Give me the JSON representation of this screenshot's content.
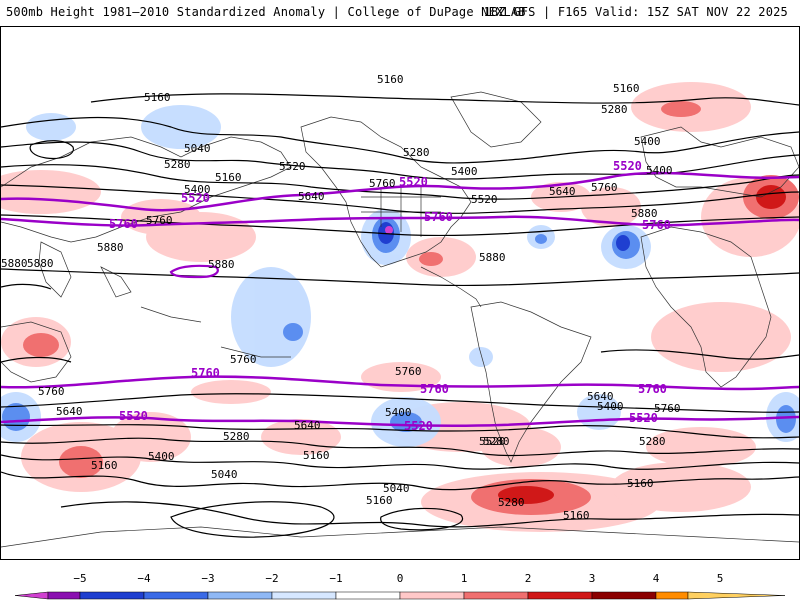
{
  "header": {
    "title": "500mb Height 1981–2010 Standardized Anomaly | College of DuPage NEXLAB",
    "run_info": "18Z GFS | F165 Valid: 15Z SAT NOV 22 2025"
  },
  "colors": {
    "contour": "#000000",
    "highlight_contour": "#9a00c8",
    "neg_strong": "#1f3fd0",
    "neg_mid": "#5b8ef0",
    "neg_light": "#c4dcff",
    "pos_light": "#ffc8c8",
    "pos_mid": "#f07070",
    "pos_strong": "#d01818",
    "land_outline": "#333333"
  },
  "contour_labels": {
    "c5160_a": "5160",
    "c5160_b": "5160",
    "c5160_c": "5160",
    "c5160_d": "5160",
    "c5160_e": "5160",
    "c5160_f": "5160",
    "c5160_g": "5160",
    "c5160_h": "5160",
    "c5040_a": "5040",
    "c5040_b": "5040",
    "c5040_c": "5040",
    "c5280_a": "5280",
    "c5280_b": "5280",
    "c5280_c": "5280",
    "c5280_d": "5280",
    "c5280_e": "5280",
    "c5280_f": "5280",
    "c5400_a": "5400",
    "c5400_b": "5400",
    "c5400_c": "5400",
    "c5400_d": "5400",
    "c5400_e": "5400",
    "c5400_f": "5400",
    "c5520_a": "5520",
    "c5520_b": "5520",
    "c5640_a": "5640",
    "c5640_b": "5640",
    "c5640_c": "5640",
    "c5640_d": "5640",
    "c5640_e": "5640",
    "c5760_a": "5760",
    "c5760_b": "5760",
    "c5760_c": "5760",
    "c5760_d": "5760",
    "c5760_e": "5760",
    "c5760_f": "5760",
    "c5760_g": "5760",
    "c5880_a": "5880",
    "c5880_b": "5880",
    "c5880_c": "5880",
    "c5880_d": "5880",
    "c5880_e": "5880",
    "c5880_f": "5880",
    "c5280_g": "5280",
    "c5280_h": "5280",
    "c5160_i": "5160",
    "c5400_g": "5400",
    "c5520_c": "5520"
  },
  "highlight_labels": {
    "h5520_a": "5520",
    "h5520_b": "5520",
    "h5520_c": "5520",
    "h5520_d": "5520",
    "h5520_e": "5520",
    "h5520_f": "5520",
    "h5760_a": "5760",
    "h5760_b": "5760",
    "h5760_c": "5760",
    "h5760_d": "5760",
    "h5760_e": "5760",
    "h5760_f": "5760"
  },
  "colorbar": {
    "ticks": [
      "−5",
      "−4",
      "−3",
      "−2",
      "−1",
      "0",
      "1",
      "2",
      "3",
      "4",
      "5"
    ],
    "colors": [
      "#d040d0",
      "#8a10b0",
      "#1f3fd0",
      "#3a6ae6",
      "#8fb8f5",
      "#d6e7ff",
      "#ffffff",
      "#ffc8c8",
      "#f07070",
      "#d01818",
      "#8b0000",
      "#ff8c00",
      "#ffd060"
    ]
  }
}
